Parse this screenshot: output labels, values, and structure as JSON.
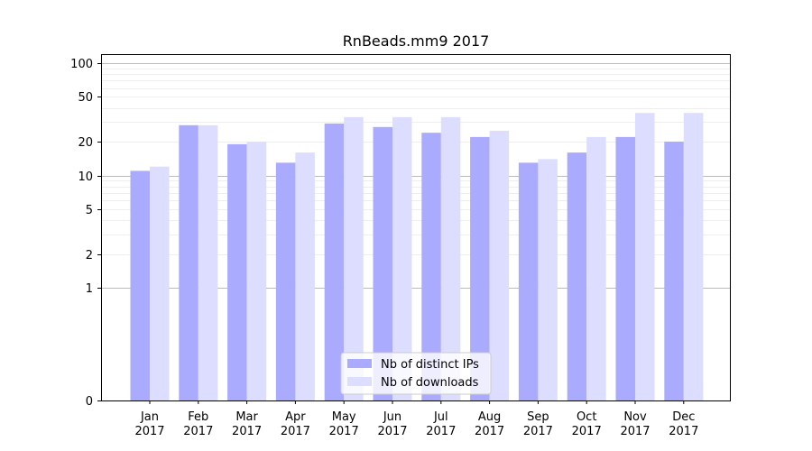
{
  "chart_data": {
    "type": "bar",
    "title": "RnBeads.mm9 2017",
    "xlabel": "",
    "ylabel": "",
    "yscale": "symlog",
    "ylim": [
      0,
      120
    ],
    "y_ticks": [
      0,
      1,
      2,
      5,
      10,
      20,
      50,
      100
    ],
    "categories": [
      [
        "Jan",
        "2017"
      ],
      [
        "Feb",
        "2017"
      ],
      [
        "Mar",
        "2017"
      ],
      [
        "Apr",
        "2017"
      ],
      [
        "May",
        "2017"
      ],
      [
        "Jun",
        "2017"
      ],
      [
        "Jul",
        "2017"
      ],
      [
        "Aug",
        "2017"
      ],
      [
        "Sep",
        "2017"
      ],
      [
        "Oct",
        "2017"
      ],
      [
        "Nov",
        "2017"
      ],
      [
        "Dec",
        "2017"
      ]
    ],
    "series": [
      {
        "name": "Nb of distinct IPs",
        "color": "#aaaaff",
        "values": [
          11,
          28,
          19,
          13,
          29,
          27,
          24,
          22,
          13,
          16,
          22,
          20
        ]
      },
      {
        "name": "Nb of downloads",
        "color": "#ddddff",
        "values": [
          12,
          28,
          20,
          16,
          33,
          33,
          33,
          25,
          14,
          22,
          36,
          36
        ]
      }
    ],
    "grid": true,
    "legend_position": "bottom-center"
  }
}
